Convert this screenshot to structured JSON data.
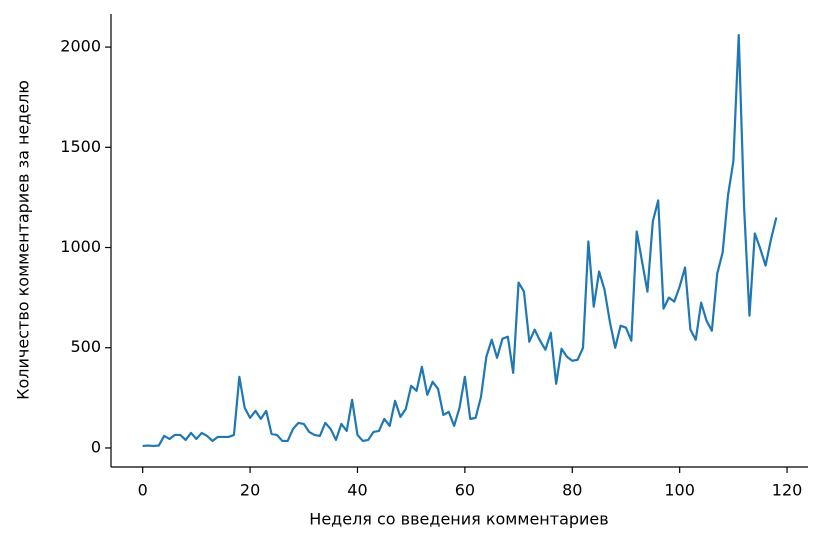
{
  "chart_data": {
    "type": "line",
    "x_label": "Неделя со введения комментариев",
    "y_label": "Количество комментариев за неделю",
    "x": [
      0,
      1,
      2,
      3,
      4,
      5,
      6,
      7,
      8,
      9,
      10,
      11,
      12,
      13,
      14,
      15,
      16,
      17,
      18,
      19,
      20,
      21,
      22,
      23,
      24,
      25,
      26,
      27,
      28,
      29,
      30,
      31,
      32,
      33,
      34,
      35,
      36,
      37,
      38,
      39,
      40,
      41,
      42,
      43,
      44,
      45,
      46,
      47,
      48,
      49,
      50,
      51,
      52,
      53,
      54,
      55,
      56,
      57,
      58,
      59,
      60,
      61,
      62,
      63,
      64,
      65,
      66,
      67,
      68,
      69,
      70,
      71,
      72,
      73,
      74,
      75,
      76,
      77,
      78,
      79,
      80,
      81,
      82,
      83,
      84,
      85,
      86,
      87,
      88,
      89,
      90,
      91,
      92,
      93,
      94,
      95,
      96,
      97,
      98,
      99,
      100,
      101,
      102,
      103,
      104,
      105,
      106,
      107,
      108,
      109,
      110,
      111,
      112,
      113,
      114,
      115,
      116,
      117,
      118
    ],
    "values": [
      10,
      12,
      10,
      12,
      60,
      45,
      65,
      65,
      40,
      75,
      45,
      75,
      60,
      35,
      55,
      55,
      55,
      65,
      355,
      200,
      150,
      185,
      145,
      185,
      70,
      65,
      35,
      35,
      95,
      125,
      120,
      80,
      65,
      60,
      125,
      95,
      40,
      120,
      85,
      240,
      65,
      35,
      40,
      80,
      85,
      145,
      110,
      235,
      155,
      195,
      310,
      285,
      405,
      265,
      330,
      295,
      165,
      180,
      110,
      200,
      355,
      145,
      150,
      255,
      455,
      540,
      450,
      545,
      555,
      375,
      825,
      780,
      530,
      590,
      535,
      490,
      575,
      320,
      495,
      455,
      435,
      440,
      500,
      1030,
      705,
      880,
      790,
      630,
      500,
      610,
      600,
      535,
      1080,
      930,
      780,
      1130,
      1235,
      695,
      750,
      730,
      805,
      900,
      590,
      540,
      725,
      635,
      585,
      870,
      975,
      1260,
      1430,
      2060,
      1200,
      660,
      1070,
      995,
      910,
      1040,
      1150
    ],
    "color": "#1f77b4",
    "xlim": [
      -5.9,
      123.9
    ],
    "xticks": [
      0,
      20,
      40,
      60,
      80,
      100,
      120
    ],
    "ylim": [
      -95,
      2165
    ],
    "yticks": [
      0,
      500,
      1000,
      1500,
      2000
    ],
    "grid": false
  }
}
